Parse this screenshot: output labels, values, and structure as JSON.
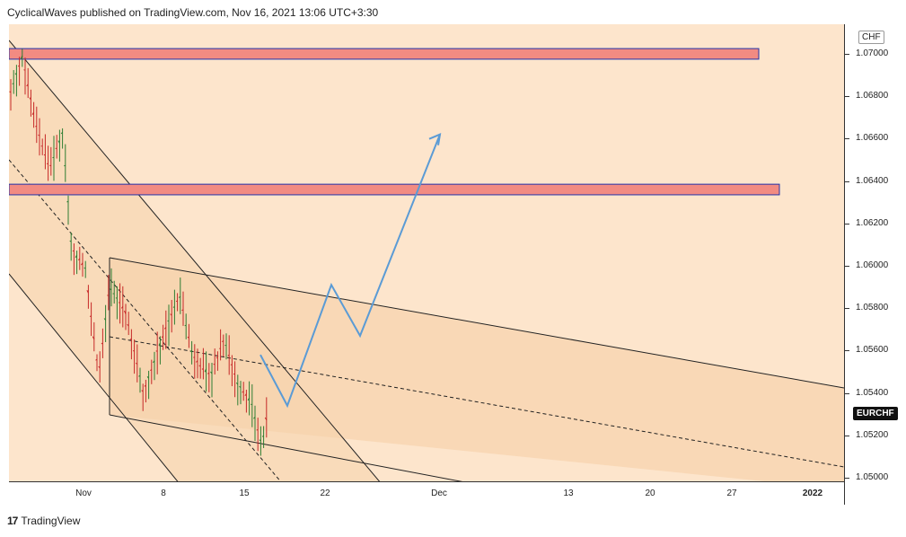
{
  "header": {
    "text": "CyclicalWaves published on TradingView.com, Nov 16, 2021 13:06 UTC+3:30"
  },
  "footer": {
    "logo": "17",
    "brand": "TradingView"
  },
  "symbol": "EURCHF",
  "currency": "CHF",
  "colors": {
    "plot_bg": "#fde5cc",
    "zone_fill": "#f28b82",
    "zone_border": "#2233aa",
    "path": "#5b9bd5",
    "channel_fill": "#f8d7b0"
  },
  "chart_data": {
    "type": "candlestick",
    "y_labels": [
      "1.07000",
      "1.06800",
      "1.06600",
      "1.06400",
      "1.06200",
      "1.06000",
      "1.05800",
      "1.05600",
      "1.05400",
      "1.05200",
      "1.05000"
    ],
    "ylim": [
      1.05,
      1.0703
    ],
    "x_labels": [
      "Nov",
      "8",
      "15",
      "22",
      "Dec",
      "13",
      "20",
      "27",
      "2022"
    ],
    "zones": [
      {
        "low": 1.06975,
        "high": 1.07025
      },
      {
        "low": 1.06335,
        "high": 1.06385
      }
    ],
    "projected_path": [
      [
        1.0558,
        0.0
      ],
      [
        1.0534,
        1.0
      ],
      [
        1.0591,
        2.4
      ],
      [
        1.0567,
        3.4
      ],
      [
        1.0662,
        5.0
      ]
    ],
    "last_price": 1.0532
  }
}
